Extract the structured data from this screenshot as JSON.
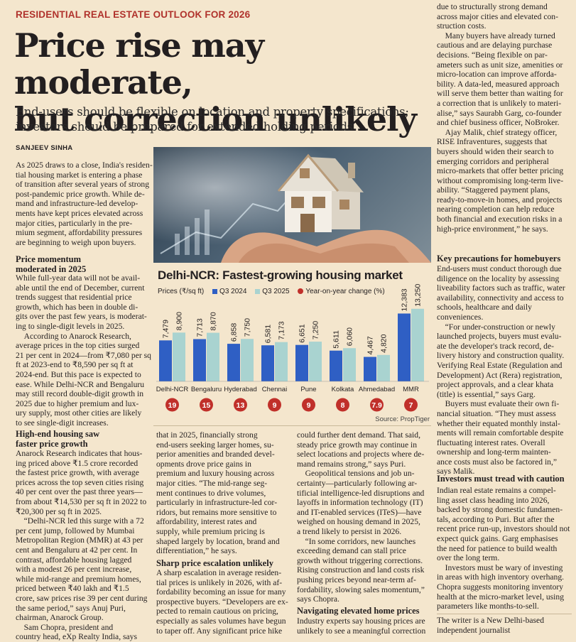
{
  "kicker": "RESIDENTIAL REAL ESTATE OUTLOOK FOR 2026",
  "headline": [
    "Price rise may moderate,",
    "but correction unlikely"
  ],
  "subhead": [
    "End-users should be flexible on location and property specifications;",
    "investors should be prepared for extended holding periods"
  ],
  "byline": "SANJEEV SINHA",
  "photo_label": "Hands holding a model house",
  "intro": [
    "As 2025 draws to a close, India's residen-",
    "tial housing market is entering a phase",
    "of transition after several years of strong",
    "post-pandemic price growth. While de-",
    "mand and infrastructure-led develop-",
    "ments have kept prices elevated across",
    "major cities, particularly in the pre-",
    "mium segment, affordability pressures",
    "are beginning to weigh upon buyers."
  ],
  "sec1": {
    "heading": [
      "Price momentum",
      "moderated in 2025"
    ],
    "body": [
      "While full-year data will not be avail-",
      "able until the end of December, current",
      "trends suggest that residential price",
      "growth, which has been in double di-",
      "gits over the past few years, is moderat-",
      "ing to single-digit levels in 2025.",
      " According to Anarock Research,",
      "average prices in the top cities surged",
      "21 per cent in 2024—from ₹7,080 per sq",
      "ft at 2023-end to ₹8,590 per sq ft at",
      "2024-end. But this pace is expected to",
      "ease. While Delhi-NCR and Bengaluru",
      "may still record double-digit growth in",
      "2025 due to higher premium and lux-",
      "ury supply, most other cities are likely",
      "to see single-digit increases."
    ]
  },
  "sec2": {
    "heading": [
      "High-end housing saw",
      "faster price growth"
    ],
    "body": [
      "Anarock Research indicates that hous-",
      "ing priced above ₹1.5 crore recorded",
      "the fastest price growth, with average",
      "prices across the top seven cities rising",
      "40 per cent over the past three years—",
      "from about ₹14,530 per sq ft in 2022 to",
      "₹20,300 per sq ft in 2025.",
      " “Delhi-NCR led this surge with a 72",
      "per cent jump, followed by Mumbai",
      "Metropolitan Region (MMR) at 43 per",
      "cent and Bengaluru at 42 per cent. In",
      "contrast, affordable housing lagged",
      "with a modest 26 per cent increase,",
      "while mid-range and premium homes,",
      "priced between ₹40 lakh and ₹1.5",
      "crore, saw prices rise 39 per cent during",
      "the same period,” says Anuj Puri,",
      "chairman, Anarock Group.",
      " Sam Chopra, president and",
      "country head, eXp Realty India, says"
    ]
  },
  "col2": [
    "that in 2025, financially strong",
    "end-users seeking larger homes, su-",
    "perior amenities and branded devel-",
    "opments drove price gains in",
    "premium and luxury housing across",
    "major cities. “The mid-range seg-",
    "ment continues to drive volumes,",
    "particularly in infrastructure-led cor-",
    "ridors, but remains more sensitive to",
    "affordability, interest rates and",
    "supply, while premium pricing is",
    "shaped largely by location, brand and",
    "differentiation,” he says."
  ],
  "sec3": {
    "heading": [
      "Sharp price escalation unlikely"
    ],
    "body": [
      "A sharp escalation in average residen-",
      "tial prices is unlikely in 2026, with af-",
      "fordability becoming an issue for many",
      "prospective buyers. “Developers are ex-",
      "pected to remain cautious on pricing,",
      "especially as sales volumes have begun",
      "to taper off. Any significant price hike"
    ]
  },
  "col3": [
    "could further dent demand. That said,",
    "steady price growth may continue in",
    "select locations and projects where de-",
    "mand remains strong,” says Puri.",
    " Geopolitical tensions and job un-",
    "certainty—particularly following ar-",
    "tificial intelligence-led disruptions and",
    "layoffs in information technology (IT)",
    "and IT-enabled services (ITeS)—have",
    "weighed on housing demand in 2025,",
    "a trend likely to persist in 2026.",
    " “In some corridors, new launches",
    "exceeding demand can stall price",
    "growth without triggering corrections.",
    "Rising construction and land costs risk",
    "pushing prices beyond near-term af-",
    "fordability, slowing sales momentum,”",
    "says Chopra."
  ],
  "sec4": {
    "heading": [
      "Navigating elevated home prices"
    ],
    "body": [
      "Industry experts say housing prices are",
      "unlikely to see a meaningful correction"
    ]
  },
  "right_top": [
    "due to structurally strong demand",
    "across major cities and elevated con-",
    "struction costs.",
    " Many buyers have already turned",
    "cautious and are delaying purchase",
    "decisions. “Being flexible on par-",
    "ameters such as unit size, amenities or",
    "micro-location can improve afforda-",
    "bility. A data-led, measured approach",
    "will serve them better than waiting for",
    "a correction that is unlikely to materi-",
    "alise,” says Saurabh Garg, co-founder",
    "and chief business officer, NoBroker.",
    " Ajay Malik, chief strategy officer,",
    "RISE Infraventures, suggests that",
    "buyers should widen their search to",
    "emerging corridors and peripheral",
    "micro-markets that offer better pricing",
    "without compromising long-term live-",
    "ability. “Staggered payment plans,",
    "ready-to-move-in homes, and projects",
    "nearing completion can help reduce",
    "both financial and execution risks in a",
    "high-price environment,” he says."
  ],
  "sec5": {
    "heading": [
      "Key precautions for homebuyers"
    ],
    "body": [
      "End-users must conduct thorough due",
      "diligence on the locality by assessing",
      "liveability factors such as traffic, water",
      "availability, connectivity and access to",
      "schools, healthcare and daily",
      "conveniences.",
      " “For under-construction or newly",
      "launched projects, buyers must evalu-",
      "ate the developer's track record, de-",
      "livery history and construction quality.",
      "Verifying Real Estate (Regulation and",
      "Development) Act (Rera) registration,",
      "project approvals, and a clear khata",
      "(title) is essential,” says Garg.",
      " Buyers must evaluate their own fi-",
      "nancial situation. “They must assess",
      "whether their equated monthly instal-",
      "ments will remain comfortable despite",
      "fluctuating interest rates. Overall",
      "ownership and long-term mainten-",
      "ance costs must also be factored in,”",
      "says Malik."
    ]
  },
  "sec6": {
    "heading": [
      "Investors must tread with caution"
    ],
    "body": [
      "Indian real estate remains a compel-",
      "ling asset class heading into 2026,",
      "backed by strong domestic fundamen-",
      "tals, according to Puri. But after the",
      "recent price run-up, investors should not",
      "expect quick gains. Garg emphasises",
      "the need for patience to build wealth",
      "over the long term.",
      " Investors must be wary of investing",
      "in areas with high inventory overhang.",
      "Chopra suggests monitoring inventory",
      "health at the micro-market level, using",
      "parameters like months-to-sell."
    ]
  },
  "writer": [
    "The writer is a New Delhi-based",
    "independent journalist"
  ],
  "chart_data": {
    "type": "bar",
    "title": "Delhi-NCR: Fastest-growing housing market",
    "ylabel": "Prices (₹/sq ft)",
    "legend": {
      "q3_2024": "Q3 2024",
      "q3_2025": "Q3 2025",
      "yoy": "Year-on-year change (%)"
    },
    "categories": [
      "Delhi-NCR",
      "Bengaluru",
      "Hyderabad",
      "Chennai",
      "Pune",
      "Kolkata",
      "Ahmedabad",
      "MMR"
    ],
    "series": [
      {
        "name": "Q3 2024",
        "values": [
          7479,
          7713,
          6858,
          6581,
          6651,
          5611,
          4467,
          12383
        ],
        "labels": [
          "7,479",
          "7,713",
          "6,858",
          "6,581",
          "6,651",
          "5,611",
          "4,467",
          "12,383"
        ]
      },
      {
        "name": "Q3 2025",
        "values": [
          8900,
          8870,
          7750,
          7173,
          7250,
          6060,
          4820,
          13250
        ],
        "labels": [
          "8,900",
          "8,870",
          "7,750",
          "7,173",
          "7,250",
          "6,060",
          "4,820",
          "13,250"
        ]
      }
    ],
    "yoy_change": [
      "19",
      "15",
      "13",
      "9",
      "9",
      "8",
      "7.9",
      "7"
    ],
    "ylim": [
      0,
      14000
    ],
    "source": "Source: PropTiger",
    "colors": {
      "q3_2024": "#2f5fc4",
      "q3_2025": "#a9d3d0",
      "yoy": "#c0302a"
    }
  }
}
